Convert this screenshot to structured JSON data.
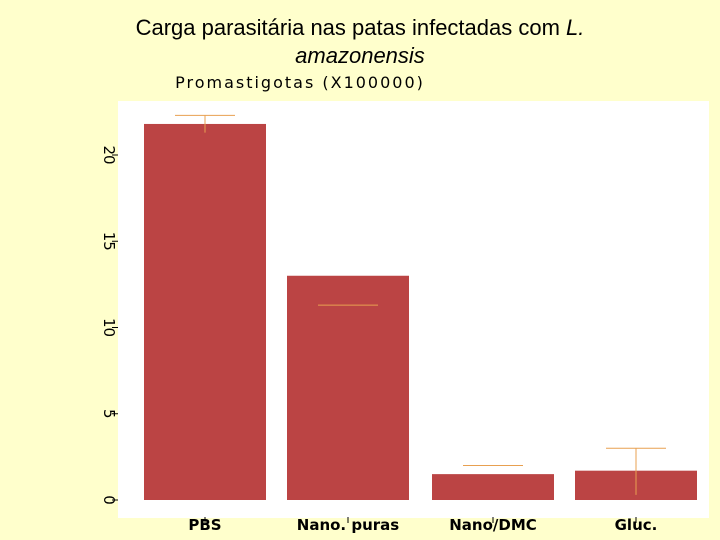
{
  "title": {
    "prefix": "Carga parasitária nas patas infectadas com",
    "italic_part1": "L.",
    "italic_part2": "amazonensis"
  },
  "chart_data": {
    "type": "bar",
    "title": "Carga parasitária nas patas infectadas com L. amazonensis",
    "ylabel": "Promastigotas (X100000)",
    "xlabel": "",
    "categories": [
      "PBS",
      "Nano. puras",
      "Nano/DMC",
      "Gluc."
    ],
    "values": [
      21.8,
      13.0,
      1.5,
      1.7
    ],
    "error_marks": [
      22.3,
      11.3,
      2.0,
      3.0
    ],
    "ylim": [
      0,
      23
    ],
    "yticks": [
      0,
      5,
      10,
      15,
      20
    ],
    "grid": false,
    "colors": {
      "bar": "#bb4444",
      "error": "#e8a050",
      "plot_bg": "#ffffff",
      "page_bg": "#ffffcc"
    }
  }
}
